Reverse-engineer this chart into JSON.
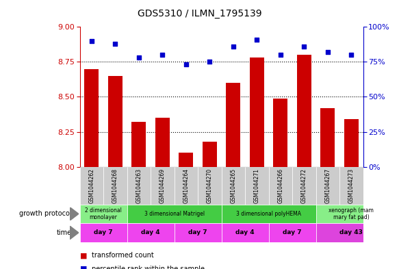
{
  "title": "GDS5310 / ILMN_1795139",
  "samples": [
    "GSM1044262",
    "GSM1044268",
    "GSM1044263",
    "GSM1044269",
    "GSM1044264",
    "GSM1044270",
    "GSM1044265",
    "GSM1044271",
    "GSM1044266",
    "GSM1044272",
    "GSM1044267",
    "GSM1044273"
  ],
  "transformed_count": [
    8.7,
    8.65,
    8.32,
    8.35,
    8.1,
    8.18,
    8.6,
    8.78,
    8.49,
    8.8,
    8.42,
    8.34
  ],
  "percentile_rank": [
    90,
    88,
    78,
    80,
    73,
    75,
    86,
    91,
    80,
    86,
    82,
    80
  ],
  "ylim_left": [
    8.0,
    9.0
  ],
  "ylim_right": [
    0,
    100
  ],
  "yticks_left": [
    8.0,
    8.25,
    8.5,
    8.75,
    9.0
  ],
  "yticks_right": [
    0,
    25,
    50,
    75,
    100
  ],
  "bar_color": "#cc0000",
  "dot_color": "#0000cc",
  "bar_bottom": 8.0,
  "growth_protocol_groups": [
    {
      "label": "2 dimensional\nmonolayer",
      "start": 0,
      "end": 2,
      "color": "#88ee88"
    },
    {
      "label": "3 dimensional Matrigel",
      "start": 2,
      "end": 6,
      "color": "#44cc44"
    },
    {
      "label": "3 dimensional polyHEMA",
      "start": 6,
      "end": 10,
      "color": "#44cc44"
    },
    {
      "label": "xenograph (mam\nmary fat pad)",
      "start": 10,
      "end": 13,
      "color": "#88ee88"
    }
  ],
  "time_groups": [
    {
      "label": "day 7",
      "start": 0,
      "end": 2,
      "color": "#ee44ee"
    },
    {
      "label": "day 4",
      "start": 2,
      "end": 4,
      "color": "#ee44ee"
    },
    {
      "label": "day 7",
      "start": 4,
      "end": 6,
      "color": "#ee44ee"
    },
    {
      "label": "day 4",
      "start": 6,
      "end": 8,
      "color": "#ee44ee"
    },
    {
      "label": "day 7",
      "start": 8,
      "end": 10,
      "color": "#ee44ee"
    },
    {
      "label": "day 43",
      "start": 10,
      "end": 13,
      "color": "#dd44dd"
    }
  ],
  "left_color": "#cc0000",
  "right_color": "#0000cc",
  "sample_bg_color": "#cccccc",
  "figwidth": 5.83,
  "figheight": 3.93,
  "dpi": 100
}
